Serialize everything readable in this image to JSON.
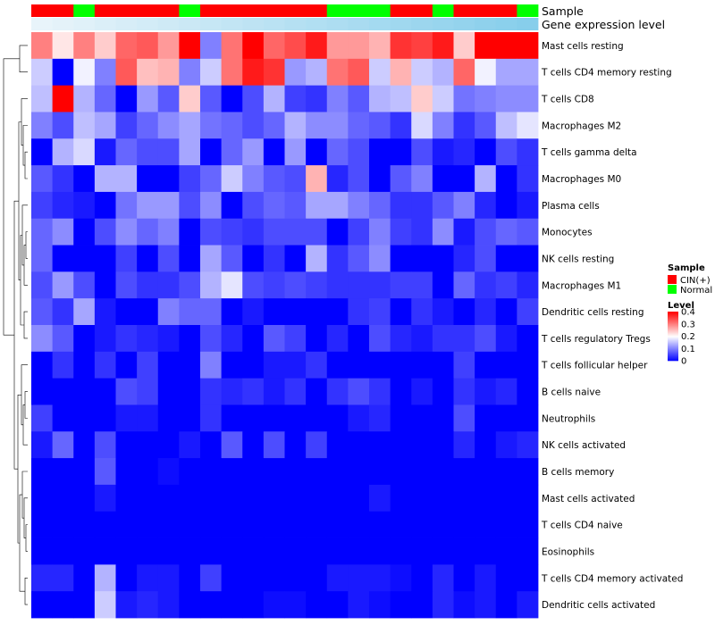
{
  "chart_data": {
    "type": "heatmap",
    "title": "",
    "value_range": [
      0,
      0.4
    ],
    "colors": {
      "low": "#0000ff",
      "mid": "#ffffff",
      "high": "#ff0000"
    },
    "row_names": [
      "Mast cells resting",
      "T cells CD4 memory resting",
      "T cells CD8",
      "Macrophages M2",
      "T cells gamma delta",
      "Macrophages M0",
      "Plasma cells",
      "Monocytes",
      "NK cells resting",
      "Macrophages M1",
      "Dendritic cells resting",
      "T cells regulatory  Tregs",
      "T cells follicular helper",
      "B cells naive",
      "Neutrophils",
      "NK cells activated",
      "B cells memory",
      "Mast cells activated",
      "T cells CD4 naive",
      "Eosinophils",
      "T cells CD4 memory activated",
      "Dendritic cells activated"
    ],
    "column_annotations": {
      "Sample": [
        "CIN(+)",
        "CIN(+)",
        "Normal",
        "CIN(+)",
        "CIN(+)",
        "CIN(+)",
        "CIN(+)",
        "Normal",
        "CIN(+)",
        "CIN(+)",
        "CIN(+)",
        "CIN(+)",
        "CIN(+)",
        "CIN(+)",
        "Normal",
        "Normal",
        "Normal",
        "CIN(+)",
        "CIN(+)",
        "Normal",
        "CIN(+)",
        "CIN(+)",
        "CIN(+)",
        "Normal"
      ],
      "Gene expression level": [
        0.0,
        0.043,
        0.087,
        0.13,
        0.174,
        0.217,
        0.261,
        0.304,
        0.348,
        0.391,
        0.435,
        0.478,
        0.522,
        0.565,
        0.609,
        0.652,
        0.696,
        0.739,
        0.783,
        0.826,
        0.87,
        0.913,
        0.957,
        1.0
      ]
    },
    "values": [
      [
        0.3,
        0.22,
        0.3,
        0.24,
        0.32,
        0.33,
        0.28,
        0.4,
        0.1,
        0.31,
        0.4,
        0.32,
        0.34,
        0.38,
        0.28,
        0.28,
        0.26,
        0.36,
        0.35,
        0.38,
        0.24,
        0.4,
        0.4,
        0.4
      ],
      [
        0.16,
        0.0,
        0.19,
        0.1,
        0.33,
        0.25,
        0.26,
        0.1,
        0.16,
        0.31,
        0.38,
        0.36,
        0.12,
        0.14,
        0.31,
        0.33,
        0.16,
        0.26,
        0.16,
        0.14,
        0.32,
        0.19,
        0.13,
        0.13
      ],
      [
        0.15,
        0.4,
        0.14,
        0.08,
        0.0,
        0.12,
        0.07,
        0.24,
        0.07,
        0.0,
        0.06,
        0.14,
        0.05,
        0.04,
        0.1,
        0.07,
        0.14,
        0.15,
        0.24,
        0.16,
        0.09,
        0.1,
        0.11,
        0.11
      ],
      [
        0.1,
        0.06,
        0.15,
        0.13,
        0.05,
        0.08,
        0.11,
        0.13,
        0.09,
        0.08,
        0.06,
        0.08,
        0.14,
        0.11,
        0.11,
        0.08,
        0.07,
        0.04,
        0.17,
        0.1,
        0.04,
        0.07,
        0.15,
        0.18
      ],
      [
        0.0,
        0.14,
        0.17,
        0.02,
        0.08,
        0.06,
        0.06,
        0.13,
        0.0,
        0.08,
        0.12,
        0.0,
        0.12,
        0.0,
        0.08,
        0.06,
        0.0,
        0.0,
        0.06,
        0.02,
        0.03,
        0.0,
        0.06,
        0.04
      ],
      [
        0.07,
        0.04,
        0.0,
        0.14,
        0.14,
        0.0,
        0.0,
        0.05,
        0.08,
        0.16,
        0.1,
        0.07,
        0.06,
        0.26,
        0.03,
        0.06,
        0.0,
        0.07,
        0.1,
        0.0,
        0.0,
        0.14,
        0.0,
        0.04
      ],
      [
        0.05,
        0.03,
        0.02,
        0.0,
        0.09,
        0.12,
        0.12,
        0.06,
        0.11,
        0.0,
        0.06,
        0.08,
        0.07,
        0.13,
        0.13,
        0.1,
        0.08,
        0.04,
        0.04,
        0.07,
        0.1,
        0.03,
        0.0,
        0.02
      ],
      [
        0.08,
        0.11,
        0.0,
        0.06,
        0.11,
        0.08,
        0.1,
        0.0,
        0.06,
        0.05,
        0.04,
        0.06,
        0.06,
        0.06,
        0.0,
        0.05,
        0.1,
        0.05,
        0.04,
        0.11,
        0.02,
        0.06,
        0.08,
        0.07
      ],
      [
        0.08,
        0.0,
        0.0,
        0.0,
        0.05,
        0.0,
        0.06,
        0.0,
        0.13,
        0.07,
        0.0,
        0.04,
        0.0,
        0.14,
        0.04,
        0.07,
        0.11,
        0.0,
        0.0,
        0.0,
        0.03,
        0.06,
        0.0,
        0.0
      ],
      [
        0.06,
        0.12,
        0.06,
        0.0,
        0.06,
        0.04,
        0.04,
        0.06,
        0.14,
        0.18,
        0.06,
        0.05,
        0.06,
        0.05,
        0.04,
        0.04,
        0.04,
        0.05,
        0.05,
        0.0,
        0.08,
        0.04,
        0.05,
        0.03
      ],
      [
        0.07,
        0.04,
        0.13,
        0.02,
        0.0,
        0.0,
        0.1,
        0.08,
        0.08,
        0.0,
        0.02,
        0.0,
        0.0,
        0.0,
        0.0,
        0.04,
        0.05,
        0.0,
        0.04,
        0.02,
        0.0,
        0.03,
        0.0,
        0.05
      ],
      [
        0.11,
        0.07,
        0.0,
        0.02,
        0.04,
        0.03,
        0.02,
        0.0,
        0.06,
        0.03,
        0.0,
        0.07,
        0.05,
        0.0,
        0.03,
        0.0,
        0.06,
        0.03,
        0.02,
        0.04,
        0.04,
        0.06,
        0.02,
        0.0
      ],
      [
        0.0,
        0.04,
        0.0,
        0.04,
        0.0,
        0.05,
        0.0,
        0.0,
        0.1,
        0.0,
        0.0,
        0.02,
        0.02,
        0.04,
        0.0,
        0.0,
        0.0,
        0.0,
        0.0,
        0.0,
        0.05,
        0.0,
        0.0,
        0.0
      ],
      [
        0.0,
        0.0,
        0.0,
        0.0,
        0.06,
        0.05,
        0.0,
        0.0,
        0.04,
        0.03,
        0.04,
        0.02,
        0.04,
        0.0,
        0.04,
        0.06,
        0.04,
        0.0,
        0.02,
        0.0,
        0.04,
        0.02,
        0.03,
        0.0
      ],
      [
        0.05,
        0.0,
        0.0,
        0.0,
        0.02,
        0.02,
        0.0,
        0.0,
        0.04,
        0.0,
        0.0,
        0.0,
        0.0,
        0.0,
        0.0,
        0.02,
        0.03,
        0.0,
        0.0,
        0.0,
        0.06,
        0.0,
        0.0,
        0.0
      ],
      [
        0.02,
        0.08,
        0.0,
        0.06,
        0.0,
        0.0,
        0.0,
        0.02,
        0.0,
        0.07,
        0.0,
        0.06,
        0.0,
        0.05,
        0.0,
        0.0,
        0.0,
        0.0,
        0.0,
        0.0,
        0.03,
        0.0,
        0.02,
        0.03
      ],
      [
        0.0,
        0.0,
        0.0,
        0.07,
        0.0,
        0.0,
        0.01,
        0.0,
        0.0,
        0.0,
        0.0,
        0.0,
        0.0,
        0.0,
        0.0,
        0.0,
        0.0,
        0.0,
        0.0,
        0.0,
        0.0,
        0.0,
        0.0,
        0.0
      ],
      [
        0.0,
        0.0,
        0.0,
        0.02,
        0.0,
        0.0,
        0.0,
        0.0,
        0.0,
        0.0,
        0.0,
        0.0,
        0.0,
        0.0,
        0.0,
        0.0,
        0.02,
        0.0,
        0.0,
        0.0,
        0.0,
        0.0,
        0.0,
        0.0
      ],
      [
        0.0,
        0.0,
        0.0,
        0.0,
        0.0,
        0.0,
        0.0,
        0.0,
        0.0,
        0.0,
        0.0,
        0.0,
        0.0,
        0.0,
        0.0,
        0.0,
        0.0,
        0.0,
        0.0,
        0.0,
        0.0,
        0.0,
        0.0,
        0.0
      ],
      [
        0.0,
        0.0,
        0.0,
        0.0,
        0.0,
        0.0,
        0.0,
        0.0,
        0.0,
        0.0,
        0.0,
        0.0,
        0.0,
        0.0,
        0.0,
        0.0,
        0.0,
        0.0,
        0.0,
        0.0,
        0.0,
        0.0,
        0.0,
        0.0
      ],
      [
        0.03,
        0.03,
        0.0,
        0.14,
        0.0,
        0.02,
        0.02,
        0.0,
        0.05,
        0.0,
        0.0,
        0.0,
        0.0,
        0.0,
        0.02,
        0.02,
        0.02,
        0.01,
        0.0,
        0.03,
        0.0,
        0.02,
        0.0,
        0.0
      ],
      [
        0.0,
        0.0,
        0.0,
        0.16,
        0.02,
        0.03,
        0.02,
        0.0,
        0.0,
        0.0,
        0.0,
        0.01,
        0.01,
        0.0,
        0.0,
        0.02,
        0.01,
        0.0,
        0.0,
        0.03,
        0.01,
        0.02,
        0.0,
        0.02
      ]
    ],
    "legend": {
      "sample_title": "Sample",
      "sample_entries": [
        {
          "label": "CIN(+)",
          "color": "#ff0000"
        },
        {
          "label": "Normal",
          "color": "#00ff00"
        }
      ],
      "level_title": "Level",
      "level_ticks": [
        {
          "label": "0.4",
          "value": 0.4
        },
        {
          "label": "0.3",
          "value": 0.3
        },
        {
          "label": "0.2",
          "value": 0.2
        },
        {
          "label": "0.1",
          "value": 0.1
        },
        {
          "label": "0",
          "value": 0.0
        }
      ]
    },
    "annotation_colors": {
      "gene_expression_low": "#e8f4fa",
      "gene_expression_high": "#87ceeb"
    },
    "dendrogram": "row"
  }
}
